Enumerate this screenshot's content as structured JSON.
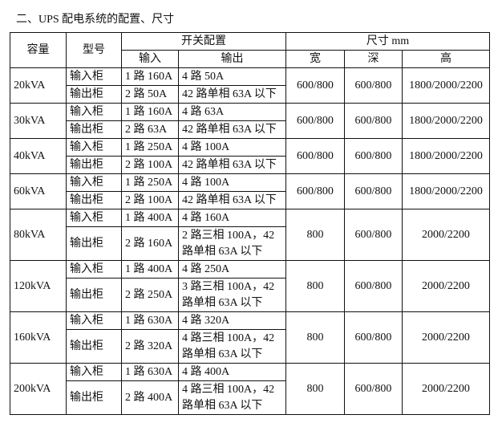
{
  "title": "二、UPS 配电系统的配置、尺寸",
  "header": {
    "capacity": "容量",
    "model": "型号",
    "switch_config": "开关配置",
    "size": "尺寸 mm",
    "input": "输入",
    "output": "输出",
    "width": "宽",
    "depth": "深",
    "height": "高"
  },
  "rows": [
    {
      "capacity": "20kVA",
      "in_cab": "输入柜",
      "in_in": "1 路 160A",
      "in_out": "4 路 50A",
      "out_cab": "输出柜",
      "out_in": "2 路 50A",
      "out_out": "42 路单相 63A 以下",
      "width": "600/800",
      "depth": "600/800",
      "height": "1800/2000/2200"
    },
    {
      "capacity": "30kVA",
      "in_cab": "输入柜",
      "in_in": "1 路 160A",
      "in_out": "4 路 63A",
      "out_cab": "输出柜",
      "out_in": "2 路 63A",
      "out_out": "42 路单相 63A 以下",
      "width": "600/800",
      "depth": "600/800",
      "height": "1800/2000/2200"
    },
    {
      "capacity": "40kVA",
      "in_cab": "输入柜",
      "in_in": "1 路 250A",
      "in_out": "4 路 100A",
      "out_cab": "输出柜",
      "out_in": "2 路 100A",
      "out_out": "42 路单相 63A 以下",
      "width": "600/800",
      "depth": "600/800",
      "height": "1800/2000/2200"
    },
    {
      "capacity": "60kVA",
      "in_cab": "输入柜",
      "in_in": "1 路 250A",
      "in_out": "4 路 100A",
      "out_cab": "输出柜",
      "out_in": "2 路 100A",
      "out_out": "42 路单相 63A 以下",
      "width": "600/800",
      "depth": "600/800",
      "height": "1800/2000/2200"
    },
    {
      "capacity": "80kVA",
      "in_cab": "输入柜",
      "in_in": "1 路 400A",
      "in_out": "4 路 160A",
      "out_cab": "输出柜",
      "out_in": "2 路 160A",
      "out_out": "2 路三相 100A，42 路单相 63A 以下",
      "width": "800",
      "depth": "600/800",
      "height": "2000/2200"
    },
    {
      "capacity": "120kVA",
      "in_cab": "输入柜",
      "in_in": "1 路 400A",
      "in_out": "4 路 250A",
      "out_cab": "输出柜",
      "out_in": "2 路 250A",
      "out_out": "3 路三相 100A，42 路单相 63A 以下",
      "width": "800",
      "depth": "600/800",
      "height": "2000/2200"
    },
    {
      "capacity": "160kVA",
      "in_cab": "输入柜",
      "in_in": "1 路 630A",
      "in_out": "4 路 320A",
      "out_cab": "输出柜",
      "out_in": "2 路 320A",
      "out_out": "4 路三相 100A，42 路单相 63A 以下",
      "width": "800",
      "depth": "600/800",
      "height": "2000/2200"
    },
    {
      "capacity": "200kVA",
      "in_cab": "输入柜",
      "in_in": "1 路 630A",
      "in_out": "4 路 400A",
      "out_cab": "输出柜",
      "out_in": "2 路 400A",
      "out_out": "4 路三相 100A，42 路单相 63A 以下",
      "width": "800",
      "depth": "600/800",
      "height": "2000/2200"
    }
  ]
}
